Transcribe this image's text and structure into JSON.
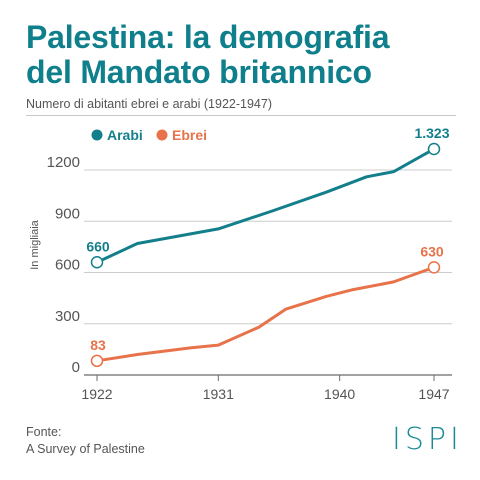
{
  "colors": {
    "title": "#0f7f8c",
    "arabi": "#137f8b",
    "ebrei": "#e8734a",
    "text": "#555555",
    "axis": "#6b6b6b",
    "grid": "#cccccc",
    "logo": "#1a8a96"
  },
  "header": {
    "title_line1": "Palestina: la demografia",
    "title_line2": "del Mandato britannico",
    "subtitle": "Numero di abitanti ebrei e arabi (1922-1947)"
  },
  "footer": {
    "source_label": "Fonte:",
    "source_name": "A Survey of Palestine",
    "logo": "ISPI"
  },
  "chart_data": {
    "type": "line",
    "title": "Palestina: la demografia del Mandato britannico",
    "subtitle": "Numero di abitanti ebrei e arabi (1922-1947)",
    "ylabel": "In migliaia",
    "xlabel": "",
    "xlim": [
      1922,
      1947
    ],
    "ylim": [
      0,
      1323
    ],
    "x_ticks": [
      1922,
      1931,
      1940,
      1947
    ],
    "y_ticks": [
      0,
      300,
      600,
      900,
      1200
    ],
    "y_tick_labels": [
      "0",
      "300",
      "600",
      "900",
      "1200"
    ],
    "grid": "horizontal",
    "legend": "top-left",
    "series": [
      {
        "name": "Arabi",
        "color": "#137f8b",
        "x": [
          1922,
          1925,
          1931,
          1935,
          1939,
          1942,
          1944,
          1947
        ],
        "y": [
          660,
          770,
          855,
          960,
          1070,
          1160,
          1190,
          1323
        ],
        "labeled_points": [
          {
            "x": 1922,
            "y": 660,
            "label": "660"
          },
          {
            "x": 1947,
            "y": 1323,
            "label": "1.323"
          }
        ]
      },
      {
        "name": "Ebrei",
        "color": "#e8734a",
        "x": [
          1922,
          1925,
          1929,
          1931,
          1934,
          1936,
          1939,
          1941,
          1944,
          1947
        ],
        "y": [
          83,
          120,
          160,
          175,
          280,
          385,
          460,
          500,
          545,
          630
        ],
        "labeled_points": [
          {
            "x": 1922,
            "y": 83,
            "label": "83"
          },
          {
            "x": 1947,
            "y": 630,
            "label": "630"
          }
        ]
      }
    ]
  }
}
